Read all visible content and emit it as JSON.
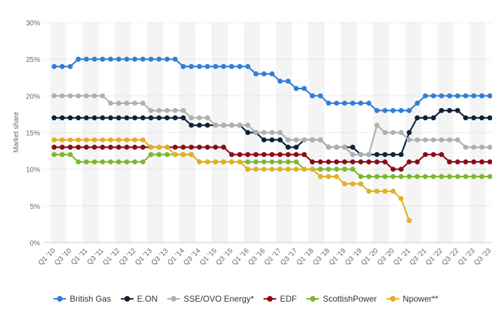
{
  "chart_data": {
    "type": "line",
    "ylabel": "Market share",
    "xlabel": "",
    "ylim": [
      0,
      30
    ],
    "y_ticks": [
      "0%",
      "5%",
      "10%",
      "15%",
      "20%",
      "25%",
      "30%"
    ],
    "x_tick_labels": [
      "Q1 '10",
      "Q3 '10",
      "Q1 '11",
      "Q3 '11",
      "Q1 '12",
      "Q3 '12",
      "Q1 '13",
      "Q3 '13",
      "Q1 '14",
      "Q3 '14",
      "Q1 '15",
      "Q3 '15",
      "Q1 '16",
      "Q3 '16",
      "Q1 '17",
      "Q3 '17",
      "Q1 '18",
      "Q3 '18",
      "Q1 '19",
      "Q3 '19",
      "Q1 '20",
      "Q3 '20",
      "Q1 '21",
      "Q3 '21",
      "Q1 '22",
      "Q3 '22",
      "Q1 '23",
      "Q3 '23"
    ],
    "grid": true,
    "legend_position": "bottom",
    "categories": [
      "Q1 '10",
      "Q2 '10",
      "Q3 '10",
      "Q4 '10",
      "Q1 '11",
      "Q2 '11",
      "Q3 '11",
      "Q4 '11",
      "Q1 '12",
      "Q2 '12",
      "Q3 '12",
      "Q4 '12",
      "Q1 '13",
      "Q2 '13",
      "Q3 '13",
      "Q4 '13",
      "Q1 '14",
      "Q2 '14",
      "Q3 '14",
      "Q4 '14",
      "Q1 '15",
      "Q2 '15",
      "Q3 '15",
      "Q4 '15",
      "Q1 '16",
      "Q2 '16",
      "Q3 '16",
      "Q4 '16",
      "Q1 '17",
      "Q2 '17",
      "Q3 '17",
      "Q4 '17",
      "Q1 '18",
      "Q2 '18",
      "Q3 '18",
      "Q4 '18",
      "Q1 '19",
      "Q2 '19",
      "Q3 '19",
      "Q4 '19",
      "Q1 '20",
      "Q2 '20",
      "Q3 '20",
      "Q4 '20",
      "Q1 '21",
      "Q2 '21",
      "Q3 '21",
      "Q4 '21",
      "Q1 '22",
      "Q2 '22",
      "Q3 '22",
      "Q4 '22",
      "Q1 '23",
      "Q2 '23",
      "Q3 '23"
    ],
    "series": [
      {
        "name": "British Gas",
        "color": "#2f7ed8",
        "values": [
          24,
          24,
          24,
          25,
          25,
          25,
          25,
          25,
          25,
          25,
          25,
          25,
          25,
          25,
          25,
          25,
          24,
          24,
          24,
          24,
          24,
          24,
          24,
          24,
          24,
          23,
          23,
          23,
          22,
          22,
          21,
          21,
          20,
          20,
          19,
          19,
          19,
          19,
          19,
          19,
          18,
          18,
          18,
          18,
          18,
          19,
          20,
          20,
          20,
          20,
          20,
          20,
          20,
          20,
          20
        ]
      },
      {
        "name": "E.ON",
        "color": "#0d233a",
        "values": [
          17,
          17,
          17,
          17,
          17,
          17,
          17,
          17,
          17,
          17,
          17,
          17,
          17,
          17,
          17,
          17,
          17,
          16,
          16,
          16,
          16,
          16,
          16,
          16,
          15,
          15,
          14,
          14,
          14,
          13,
          13,
          14,
          14,
          14,
          13,
          13,
          13,
          13,
          12,
          12,
          12,
          12,
          12,
          12,
          15,
          17,
          17,
          17,
          18,
          18,
          18,
          17,
          17,
          17,
          17
        ]
      },
      {
        "name": "SSE/OVO Energy*",
        "color": "#b0b0b0",
        "values": [
          20,
          20,
          20,
          20,
          20,
          20,
          20,
          19,
          19,
          19,
          19,
          19,
          18,
          18,
          18,
          18,
          18,
          17,
          17,
          17,
          16,
          16,
          16,
          16,
          16,
          15,
          15,
          15,
          15,
          14,
          14,
          14,
          14,
          14,
          13,
          13,
          13,
          12,
          12,
          12,
          16,
          15,
          15,
          15,
          14,
          14,
          14,
          14,
          14,
          14,
          14,
          13,
          13,
          13,
          13
        ]
      },
      {
        "name": "EDF",
        "color": "#8b0c14",
        "values": [
          13,
          13,
          13,
          13,
          13,
          13,
          13,
          13,
          13,
          13,
          13,
          13,
          13,
          13,
          13,
          13,
          13,
          13,
          13,
          13,
          13,
          13,
          12,
          12,
          12,
          12,
          12,
          12,
          12,
          12,
          12,
          12,
          11,
          11,
          11,
          11,
          11,
          11,
          11,
          11,
          11,
          11,
          10,
          10,
          11,
          11,
          12,
          12,
          12,
          11,
          11,
          11,
          11,
          11,
          11
        ]
      },
      {
        "name": "ScottishPower",
        "color": "#7cb82f",
        "values": [
          12,
          12,
          12,
          11,
          11,
          11,
          11,
          11,
          11,
          11,
          11,
          11,
          12,
          12,
          12,
          12,
          12,
          12,
          11,
          11,
          11,
          11,
          11,
          11,
          11,
          11,
          11,
          11,
          11,
          11,
          11,
          10,
          10,
          10,
          10,
          10,
          10,
          10,
          9,
          9,
          9,
          9,
          9,
          9,
          9,
          9,
          9,
          9,
          9,
          9,
          9,
          9,
          9,
          9,
          9
        ]
      },
      {
        "name": "Npower**",
        "color": "#e3b023",
        "values": [
          14,
          14,
          14,
          14,
          14,
          14,
          14,
          14,
          14,
          14,
          14,
          14,
          13,
          13,
          13,
          12,
          12,
          12,
          11,
          11,
          11,
          11,
          11,
          11,
          10,
          10,
          10,
          10,
          10,
          10,
          10,
          10,
          10,
          9,
          9,
          9,
          8,
          8,
          8,
          7,
          7,
          7,
          7,
          6,
          3,
          null,
          null,
          null,
          null,
          null,
          null,
          null,
          null,
          null,
          null
        ]
      }
    ]
  }
}
